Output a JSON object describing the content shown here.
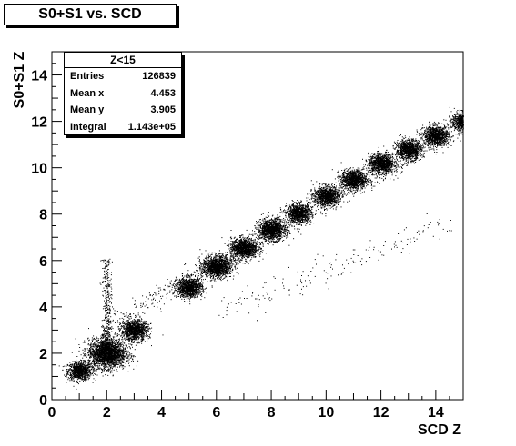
{
  "chart_data": {
    "type": "scatter",
    "title": "S0+S1 vs. SCD",
    "xlabel": "SCD Z",
    "ylabel": "S0+S1 Z",
    "xlim": [
      0,
      15
    ],
    "ylim": [
      0,
      15
    ],
    "xticks": [
      "0",
      "2",
      "4",
      "6",
      "8",
      "10",
      "12",
      "14"
    ],
    "yticks": [
      "0",
      "2",
      "4",
      "6",
      "8",
      "10",
      "12",
      "14"
    ],
    "stats": {
      "name": "Z<15",
      "rows": [
        {
          "label": "Entries",
          "value": "126839"
        },
        {
          "label": "Mean x",
          "value": "4.453"
        },
        {
          "label": "Mean y",
          "value": "3.905"
        },
        {
          "label": "Integral",
          "value": "1.143e+05"
        }
      ]
    },
    "clusters": [
      {
        "x": 1,
        "y": 1.25,
        "weight": 0.3
      },
      {
        "x": 2,
        "y": 2.0,
        "weight": 1.0
      },
      {
        "x": 3,
        "y": 3.0,
        "weight": 0.45
      },
      {
        "x": 5,
        "y": 4.85,
        "weight": 0.4
      },
      {
        "x": 6,
        "y": 5.75,
        "weight": 0.55
      },
      {
        "x": 7,
        "y": 6.55,
        "weight": 0.45
      },
      {
        "x": 8,
        "y": 7.35,
        "weight": 0.5
      },
      {
        "x": 9,
        "y": 8.05,
        "weight": 0.35
      },
      {
        "x": 10,
        "y": 8.8,
        "weight": 0.4
      },
      {
        "x": 11,
        "y": 9.5,
        "weight": 0.4
      },
      {
        "x": 12,
        "y": 10.2,
        "weight": 0.4
      },
      {
        "x": 13,
        "y": 10.8,
        "weight": 0.4
      },
      {
        "x": 14,
        "y": 11.4,
        "weight": 0.4
      },
      {
        "x": 15,
        "y": 12.0,
        "weight": 0.3
      }
    ],
    "grid": false,
    "color": "#000000"
  }
}
